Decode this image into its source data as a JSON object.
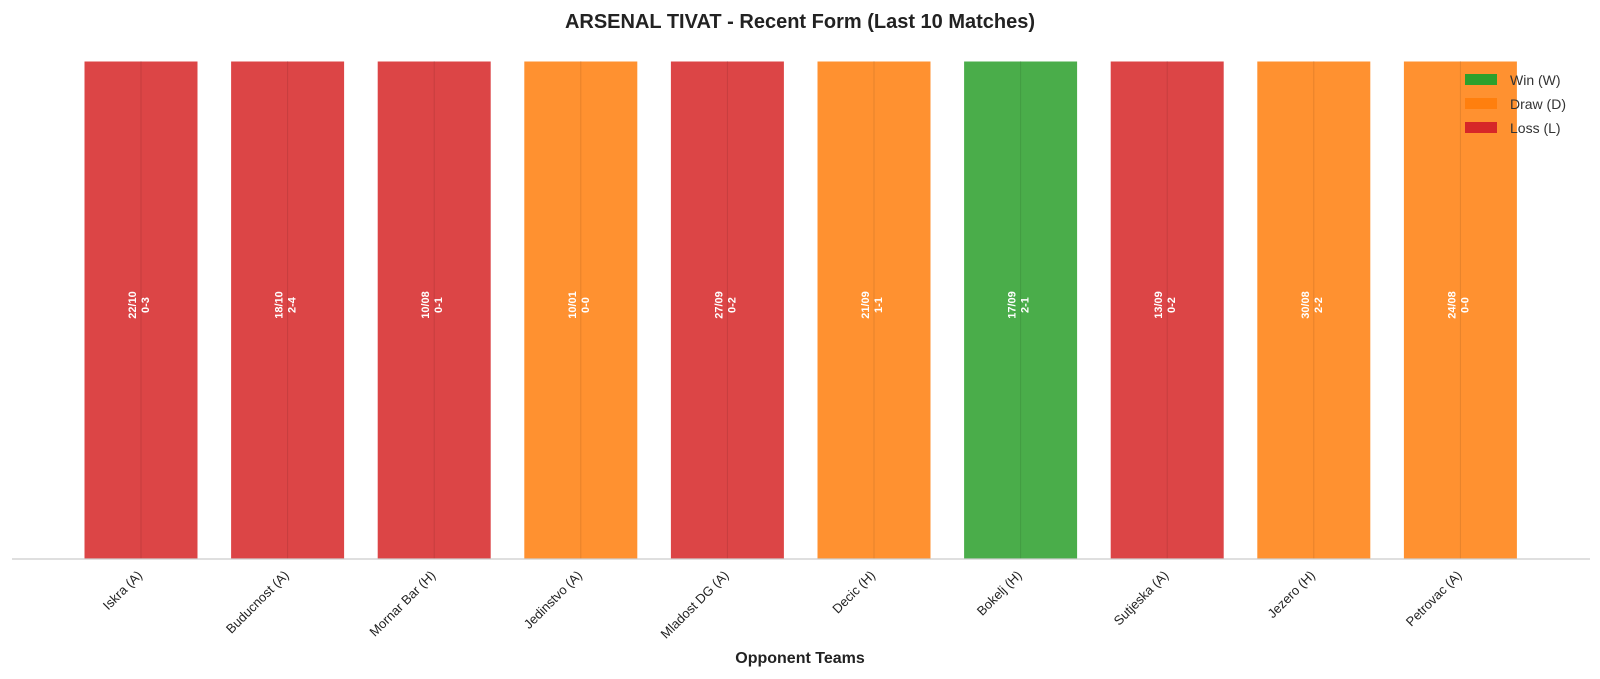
{
  "chart_data": {
    "type": "bar",
    "title": "ARSENAL TIVAT - Recent Form (Last 10 Matches)",
    "xlabel": "Opponent Teams",
    "ylabel": "",
    "grid": false,
    "legend_position": "top-right",
    "legend": [
      {
        "key": "W",
        "label": "Win (W)",
        "color": "#2ca02c"
      },
      {
        "key": "D",
        "label": "Draw (D)",
        "color": "#ff7f0e"
      },
      {
        "key": "L",
        "label": "Loss (L)",
        "color": "#d62728"
      }
    ],
    "categories": [
      "Iskra (A)",
      "Buducnost (A)",
      "Mornar Bar (H)",
      "Jedinstvo (A)",
      "Mladost DG (A)",
      "Decic (H)",
      "Bokelj (H)",
      "Sutjeska (A)",
      "Jezero (H)",
      "Petrovac (A)"
    ],
    "values": [
      1,
      1,
      1,
      1,
      1,
      1,
      1,
      1,
      1,
      1
    ],
    "results": [
      "L",
      "L",
      "L",
      "D",
      "L",
      "D",
      "W",
      "L",
      "D",
      "D"
    ],
    "dates": [
      "22/10",
      "18/10",
      "10/08",
      "10/01",
      "27/09",
      "21/09",
      "17/09",
      "13/09",
      "30/08",
      "24/08"
    ],
    "scores": [
      "0-3",
      "2-4",
      "0-1",
      "0-0",
      "0-2",
      "1-1",
      "2-1",
      "0-2",
      "2-2",
      "0-0"
    ]
  }
}
